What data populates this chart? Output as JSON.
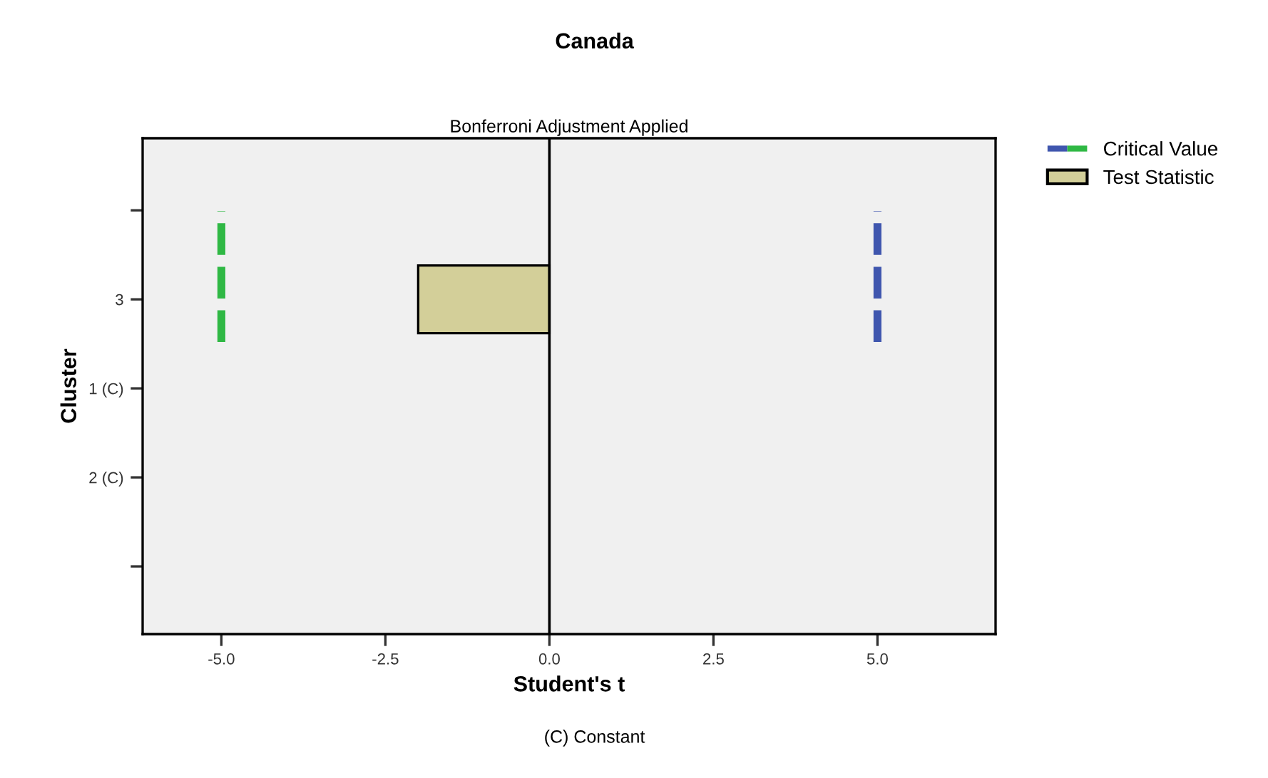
{
  "chart_data": {
    "type": "bar",
    "orientation": "horizontal",
    "title": "Canada",
    "subtitle": "Bonferroni Adjustment Applied",
    "xlabel": "Student's t",
    "ylabel": "Cluster",
    "categories": [
      null,
      "3",
      "1 (C)",
      "2 (C)",
      null
    ],
    "series": [
      {
        "name": "Test Statistic",
        "color": "#d3cf99",
        "values": [
          null,
          -2.0,
          null,
          null,
          null
        ]
      }
    ],
    "xlim": [
      -6.2,
      6.8
    ],
    "xticks": [
      {
        "value": -5,
        "label": "-5.0"
      },
      {
        "value": -2.5,
        "label": "-2.5"
      },
      {
        "value": 0,
        "label": "0.0"
      },
      {
        "value": 2.5,
        "label": "2.5"
      },
      {
        "value": 5,
        "label": "5.0"
      }
    ],
    "ref_lines": [
      {
        "axis": "x",
        "value": 0,
        "color": "#000000"
      },
      {
        "axis": "x",
        "value": 5.0,
        "label": "Critical Value",
        "color": "#3f56ae",
        "line_style": "dashed"
      },
      {
        "axis": "x",
        "value": -5.0,
        "color": "#2fb844",
        "line_style": "dashed"
      }
    ],
    "annotations": [
      "(C) Constant"
    ],
    "grid": false,
    "legend": "top right"
  }
}
